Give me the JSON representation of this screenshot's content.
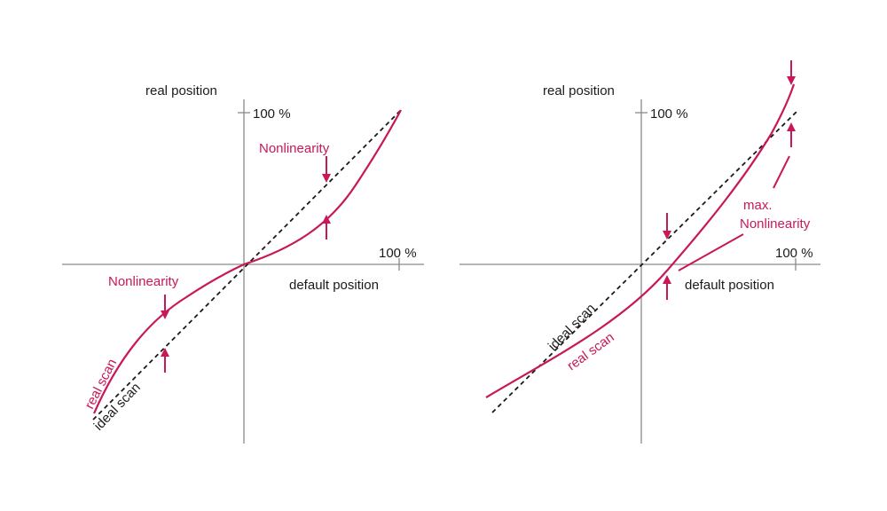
{
  "colors": {
    "real": "#c8185a",
    "ideal": "#1a1a1a",
    "axis": "#8a8a8a",
    "text": "#1a1a1a"
  },
  "left_panel": {
    "y_axis_label": "real position",
    "y_tick_label": "100 %",
    "x_tick_label": "100 %",
    "x_axis_label": "default position",
    "nonlinearity_upper": "Nonlinearity",
    "nonlinearity_lower": "Nonlinearity",
    "real_scan_label": "real scan",
    "ideal_scan_label": "ideal scan"
  },
  "right_panel": {
    "y_axis_label": "real position",
    "y_tick_label": "100 %",
    "x_tick_label": "100 %",
    "x_axis_label": "default position",
    "max_label_line1": "max.",
    "max_label_line2": "Nonlinearity",
    "real_scan_label": "real scan",
    "ideal_scan_label": "ideal scan"
  }
}
